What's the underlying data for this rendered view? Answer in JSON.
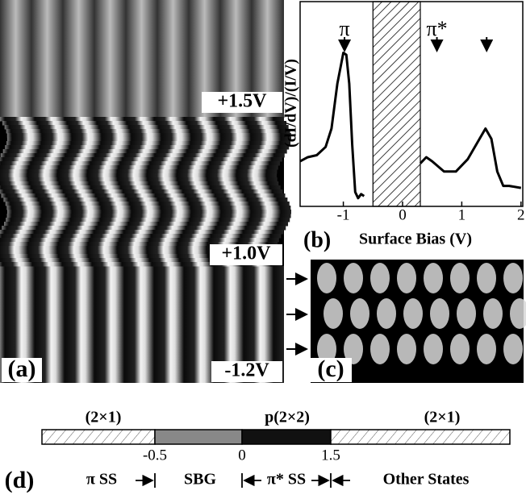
{
  "panel_a": {
    "label": "(a)",
    "biases": [
      "+1.5V",
      "+1.0V",
      "-1.2V"
    ]
  },
  "chart_data": {
    "type": "line",
    "label": "(b)",
    "x_label": "Surface Bias (V)",
    "y_label": "(dI/dV)/(I/V)",
    "x": [
      -1.73,
      -1.6,
      -1.45,
      -1.3,
      -1.2,
      -1.1,
      -1.0,
      -0.95,
      -0.9,
      -0.85,
      -0.8,
      -0.75,
      -0.7,
      -0.65,
      0,
      0.3,
      0.4,
      0.5,
      0.7,
      0.9,
      1.1,
      1.3,
      1.4,
      1.5,
      1.6,
      1.7,
      1.8,
      2.0
    ],
    "values": [
      0.22,
      0.24,
      0.25,
      0.29,
      0.38,
      0.6,
      0.75,
      0.74,
      0.6,
      0.3,
      0.07,
      0.04,
      0.06,
      0.05,
      null,
      0.21,
      0.24,
      0.22,
      0.17,
      0.17,
      0.23,
      0.33,
      0.38,
      0.33,
      0.17,
      0.1,
      0.1,
      0.09
    ],
    "color": "#000000",
    "xlim": [
      -1.73,
      2.03
    ],
    "ylim": [
      0,
      1
    ],
    "xticks": [
      -1,
      0,
      1,
      2
    ],
    "hatched_region": [
      -0.5,
      0.3
    ],
    "annotations": [
      {
        "text": "π",
        "x": -0.98
      },
      {
        "text": "π*",
        "x": 0.58
      }
    ],
    "arrows": [
      -0.98,
      0.58,
      1.42
    ]
  },
  "panel_c": {
    "label": "(c)"
  },
  "panel_d": {
    "label": "(d)",
    "phases": [
      "(2×1)",
      "p(2×2)",
      "(2×1)"
    ],
    "ticks": [
      -0.5,
      0,
      1.5
    ],
    "states": [
      "π SS",
      "SBG",
      "π* SS",
      "Other States"
    ]
  }
}
